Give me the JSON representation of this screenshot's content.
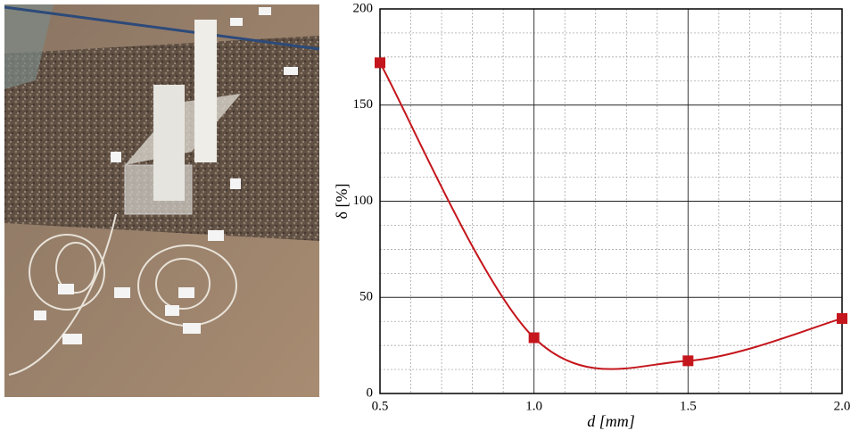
{
  "chart_data": {
    "type": "line",
    "x": [
      0.5,
      1.0,
      1.5,
      2.0
    ],
    "series": [
      {
        "color": "#c4161c",
        "values": [
          172,
          29,
          17,
          39
        ]
      }
    ],
    "xlim": [
      0.5,
      2.0
    ],
    "xticks": [
      0.5,
      {
        "value": 1,
        "label": "1.0"
      },
      1.5,
      {
        "value": 2,
        "label": "2.0"
      }
    ],
    "ylim": [
      0,
      200
    ],
    "yticks": [
      0,
      50,
      100,
      150,
      200
    ],
    "xlabel": "d [mm]",
    "ylabel": "δ [%]",
    "grid": true,
    "x_minor_divisions": 5,
    "y_minor_divisions": 4
  }
}
